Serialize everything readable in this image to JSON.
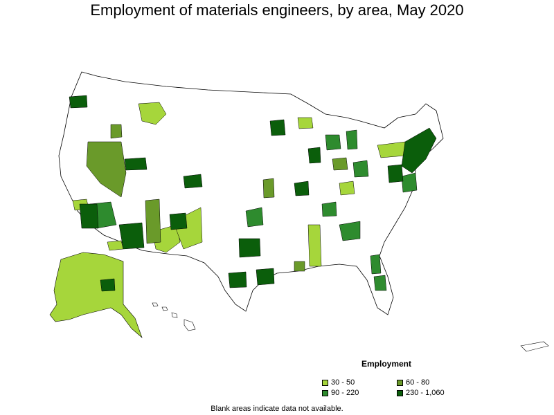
{
  "map": {
    "title": "Employment of materials engineers, by area, May 2020",
    "footnote": "Blank areas indicate data not available.",
    "legend": {
      "title": "Employment",
      "items": [
        {
          "label": "30 - 50",
          "color": "#a6d63b"
        },
        {
          "label": "60 - 80",
          "color": "#6a9a2a"
        },
        {
          "label": "90 - 220",
          "color": "#2e8b2e"
        },
        {
          "label": "230 - 1,060",
          "color": "#0b5e0b"
        }
      ]
    }
  }
}
